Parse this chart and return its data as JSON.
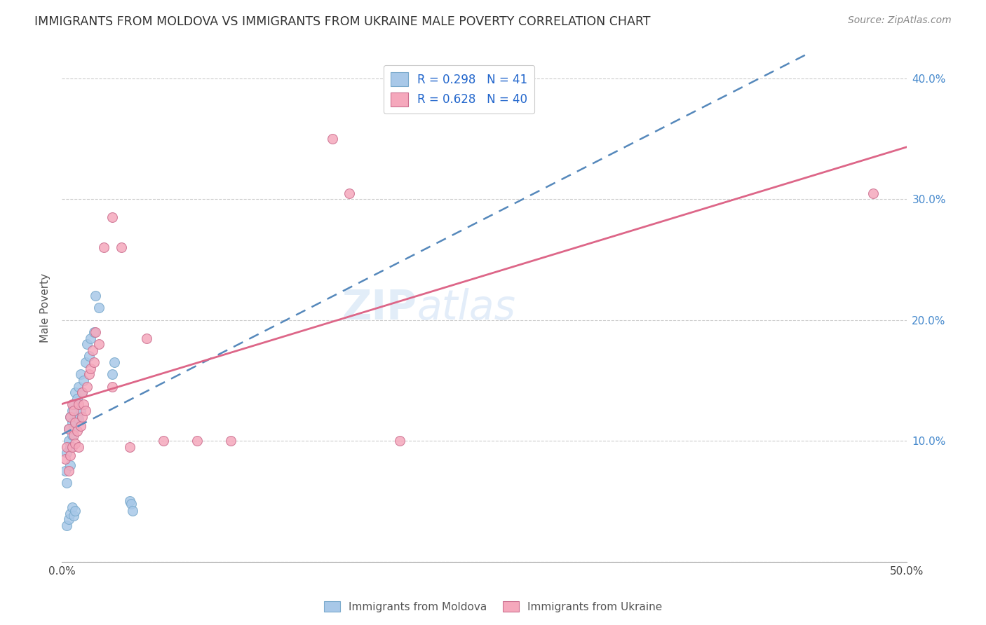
{
  "title": "IMMIGRANTS FROM MOLDOVA VS IMMIGRANTS FROM UKRAINE MALE POVERTY CORRELATION CHART",
  "source": "Source: ZipAtlas.com",
  "ylabel": "Male Poverty",
  "xlim": [
    0.0,
    0.5
  ],
  "ylim": [
    0.0,
    0.42
  ],
  "moldova_color": "#a8c8e8",
  "ukraine_color": "#f5a8bc",
  "trendline_moldova_color": "#5588bb",
  "trendline_ukraine_color": "#dd6688",
  "legend_moldova_R": "0.298",
  "legend_moldova_N": "41",
  "legend_ukraine_R": "0.628",
  "legend_ukraine_N": "40",
  "moldova_x": [
    0.002,
    0.003,
    0.003,
    0.004,
    0.004,
    0.005,
    0.005,
    0.005,
    0.006,
    0.006,
    0.006,
    0.007,
    0.007,
    0.008,
    0.008,
    0.009,
    0.009,
    0.01,
    0.01,
    0.011,
    0.011,
    0.012,
    0.013,
    0.014,
    0.015,
    0.016,
    0.017,
    0.019,
    0.02,
    0.022,
    0.03,
    0.031,
    0.04,
    0.041,
    0.042,
    0.003,
    0.004,
    0.005,
    0.006,
    0.007,
    0.008
  ],
  "moldova_y": [
    0.075,
    0.065,
    0.09,
    0.1,
    0.11,
    0.08,
    0.095,
    0.12,
    0.105,
    0.115,
    0.125,
    0.11,
    0.13,
    0.115,
    0.14,
    0.12,
    0.135,
    0.118,
    0.145,
    0.125,
    0.155,
    0.14,
    0.15,
    0.165,
    0.18,
    0.17,
    0.185,
    0.19,
    0.22,
    0.21,
    0.155,
    0.165,
    0.05,
    0.048,
    0.042,
    0.03,
    0.035,
    0.04,
    0.045,
    0.038,
    0.042
  ],
  "ukraine_x": [
    0.002,
    0.003,
    0.004,
    0.004,
    0.005,
    0.005,
    0.006,
    0.006,
    0.007,
    0.007,
    0.008,
    0.008,
    0.009,
    0.01,
    0.01,
    0.011,
    0.012,
    0.012,
    0.013,
    0.014,
    0.015,
    0.016,
    0.017,
    0.018,
    0.019,
    0.02,
    0.022,
    0.025,
    0.03,
    0.035,
    0.04,
    0.05,
    0.06,
    0.08,
    0.1,
    0.2,
    0.48,
    0.16,
    0.17,
    0.03
  ],
  "ukraine_y": [
    0.085,
    0.095,
    0.075,
    0.11,
    0.088,
    0.12,
    0.095,
    0.13,
    0.105,
    0.125,
    0.098,
    0.115,
    0.108,
    0.095,
    0.13,
    0.112,
    0.12,
    0.14,
    0.13,
    0.125,
    0.145,
    0.155,
    0.16,
    0.175,
    0.165,
    0.19,
    0.18,
    0.26,
    0.285,
    0.26,
    0.095,
    0.185,
    0.1,
    0.1,
    0.1,
    0.1,
    0.305,
    0.35,
    0.305,
    0.145
  ]
}
